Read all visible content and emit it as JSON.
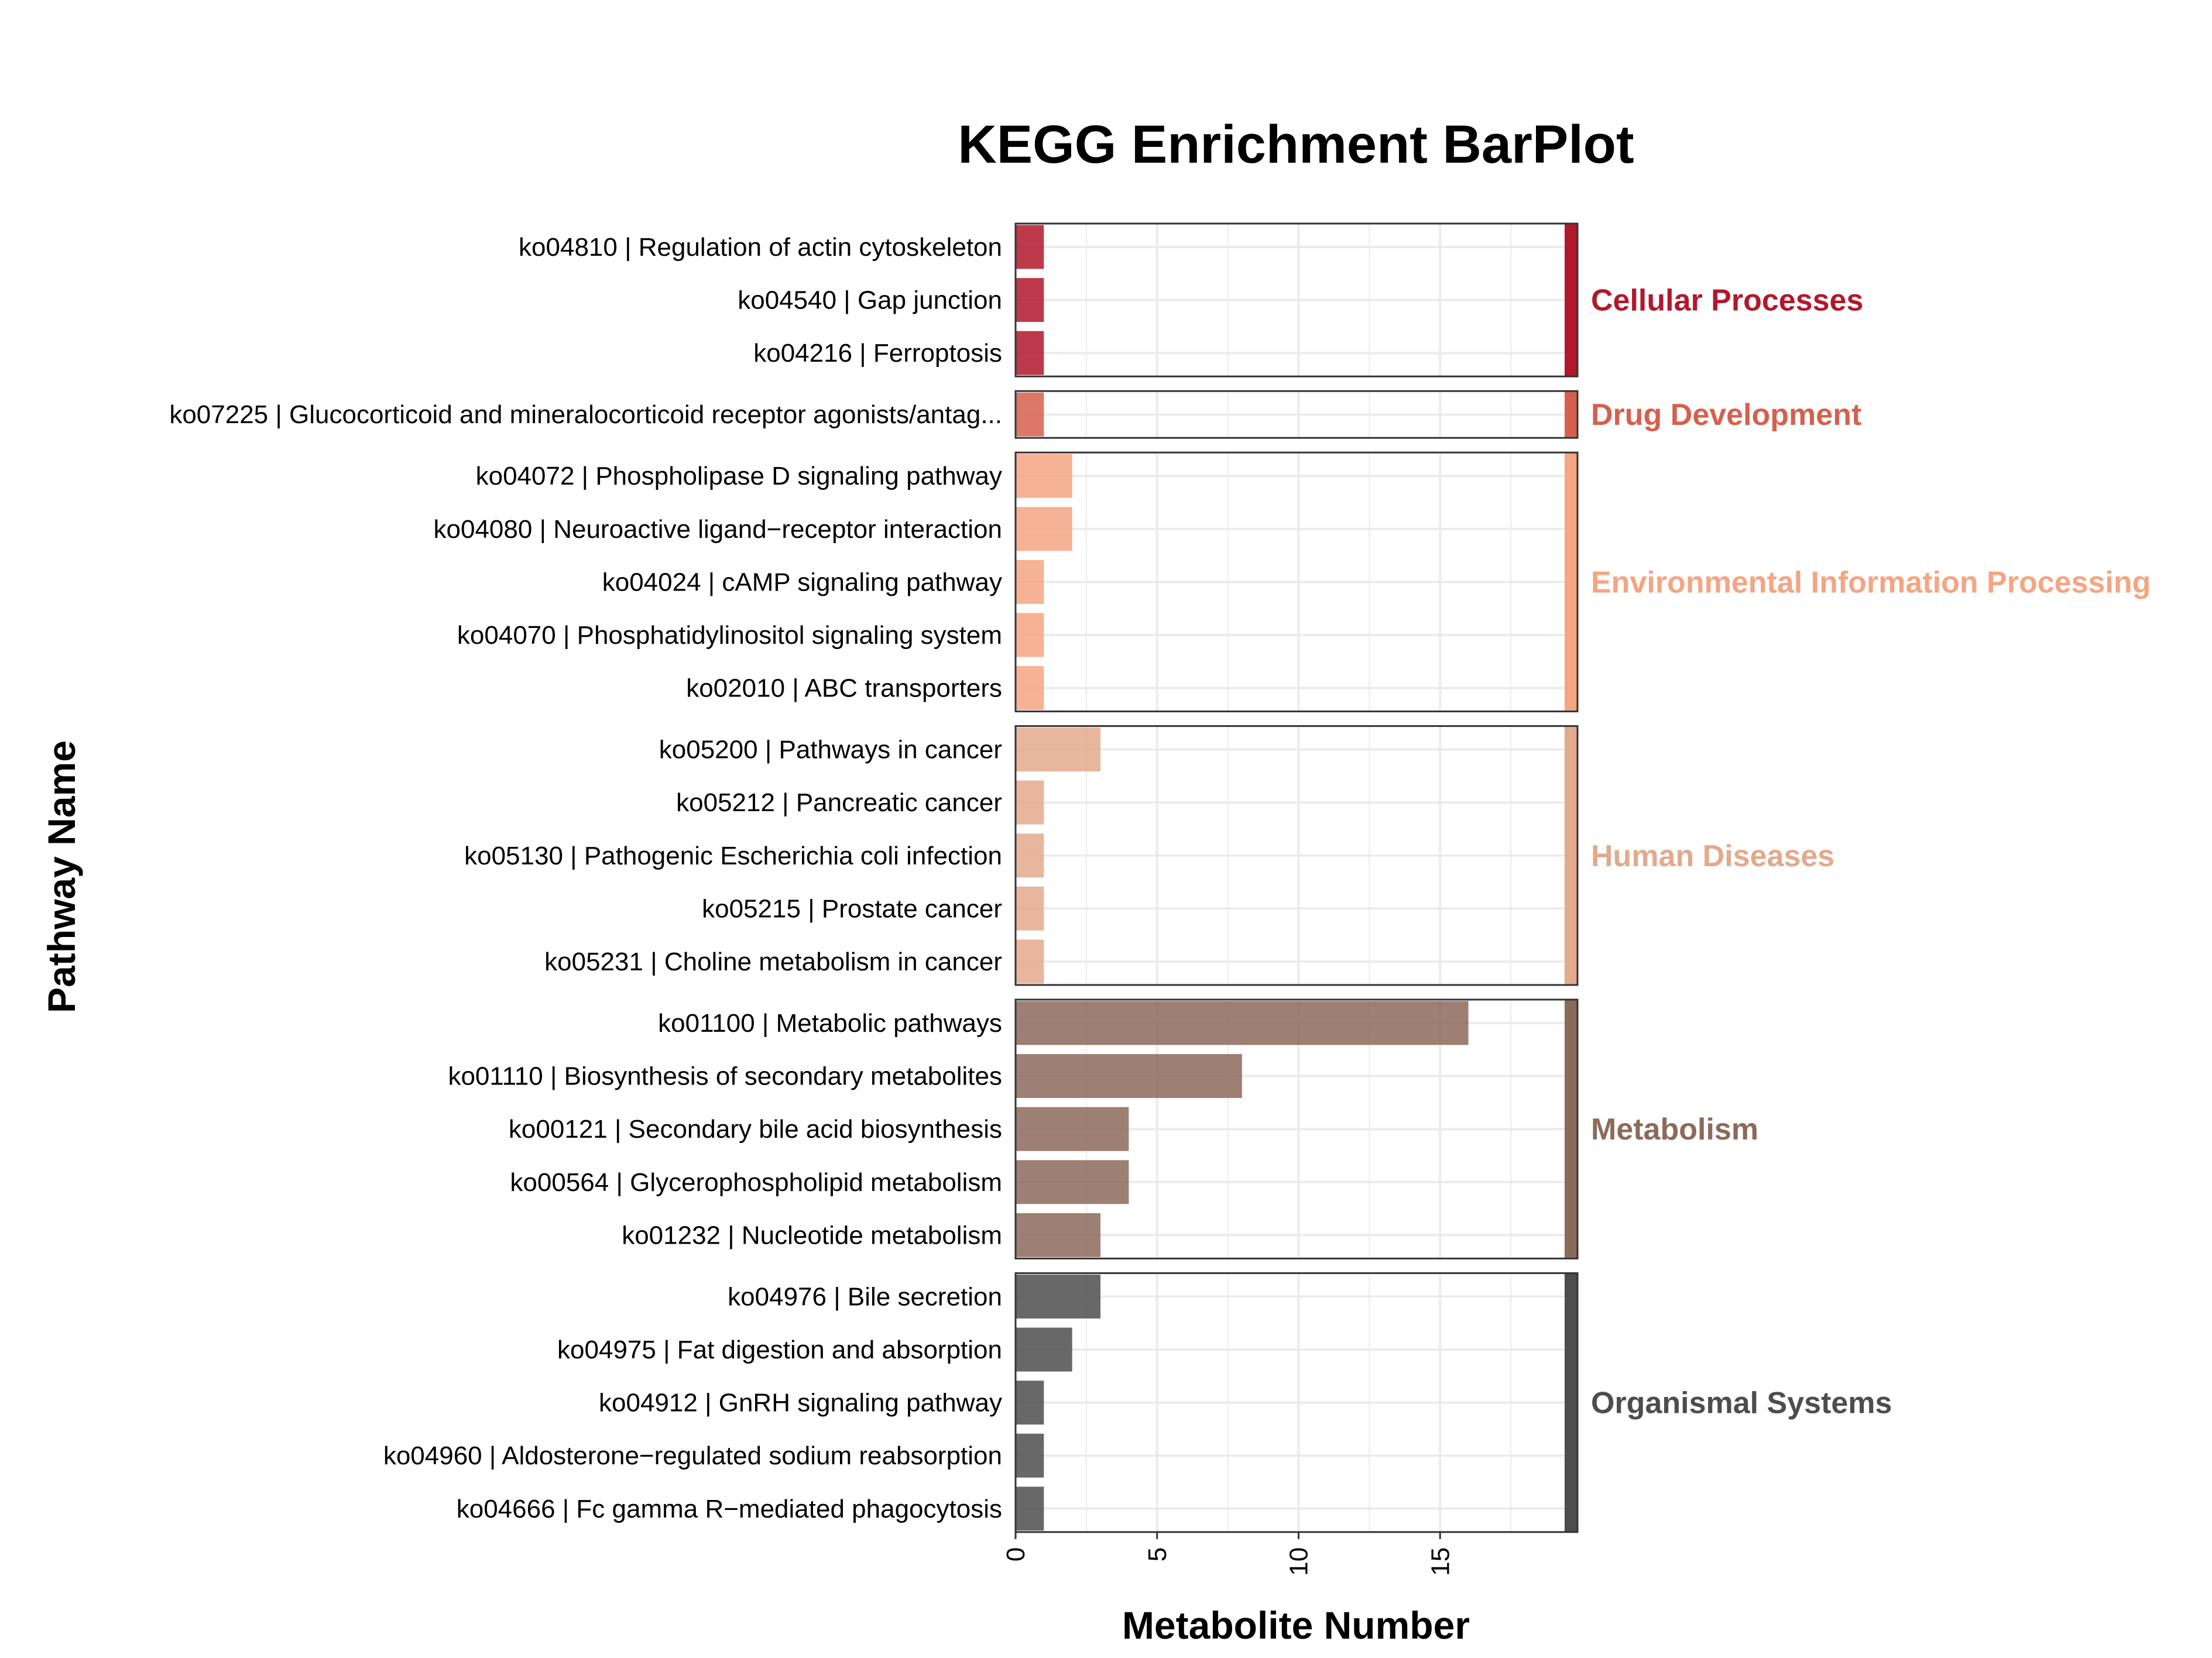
{
  "chart_data": {
    "type": "bar",
    "orientation": "horizontal",
    "title": "KEGG Enrichment BarPlot",
    "xlabel": "Metabolite Number",
    "ylabel": "Pathway Name",
    "xlim": [
      0,
      19.4
    ],
    "xticks": [
      "0",
      "5",
      "10",
      "15"
    ],
    "grid": true,
    "legend": "none",
    "groups": [
      {
        "name": "Cellular Processes",
        "color": "#B2182B",
        "items": [
          {
            "label": "ko04810 | Regulation of actin cytoskeleton",
            "value": 1
          },
          {
            "label": "ko04540 | Gap junction",
            "value": 1
          },
          {
            "label": "ko04216 | Ferroptosis",
            "value": 1
          }
        ]
      },
      {
        "name": "Drug Development",
        "color": "#D6604D",
        "items": [
          {
            "label": "ko07225 | Glucocorticoid and mineralocorticoid receptor agonists/antag...",
            "value": 1
          }
        ]
      },
      {
        "name": "Environmental Information Processing",
        "color": "#F4A582",
        "items": [
          {
            "label": "ko04072 | Phospholipase D signaling pathway",
            "value": 2
          },
          {
            "label": "ko04080 | Neuroactive ligand−receptor interaction",
            "value": 2
          },
          {
            "label": "ko04024 | cAMP signaling pathway",
            "value": 1
          },
          {
            "label": "ko04070 | Phosphatidylinositol signaling system",
            "value": 1
          },
          {
            "label": "ko02010 | ABC transporters",
            "value": 1
          }
        ]
      },
      {
        "name": "Human Diseases",
        "color": "#E3A98C",
        "items": [
          {
            "label": "ko05200 | Pathways in cancer",
            "value": 3
          },
          {
            "label": "ko05212 | Pancreatic cancer",
            "value": 1
          },
          {
            "label": "ko05130 | Pathogenic Escherichia coli infection",
            "value": 1
          },
          {
            "label": "ko05215 | Prostate cancer",
            "value": 1
          },
          {
            "label": "ko05231 | Choline metabolism in cancer",
            "value": 1
          }
        ]
      },
      {
        "name": "Metabolism",
        "color": "#8C6A5B",
        "items": [
          {
            "label": "ko01100 | Metabolic pathways",
            "value": 16
          },
          {
            "label": "ko01110 | Biosynthesis of secondary metabolites",
            "value": 8
          },
          {
            "label": "ko00121 | Secondary bile acid biosynthesis",
            "value": 4
          },
          {
            "label": "ko00564 | Glycerophospholipid metabolism",
            "value": 4
          },
          {
            "label": "ko01232 | Nucleotide metabolism",
            "value": 3
          }
        ]
      },
      {
        "name": "Organismal Systems",
        "color": "#4D4D4D",
        "items": [
          {
            "label": "ko04976 | Bile secretion",
            "value": 3
          },
          {
            "label": "ko04975 | Fat digestion and absorption",
            "value": 2
          },
          {
            "label": "ko04912 | GnRH signaling pathway",
            "value": 1
          },
          {
            "label": "ko04960 | Aldosterone−regulated sodium reabsorption",
            "value": 1
          },
          {
            "label": "ko04666 | Fc gamma R−mediated phagocytosis",
            "value": 1
          }
        ]
      }
    ]
  }
}
